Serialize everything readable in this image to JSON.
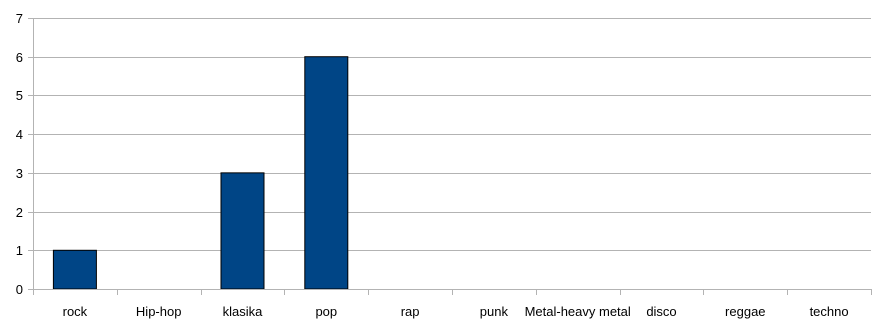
{
  "chart_data": {
    "type": "bar",
    "categories": [
      "rock",
      "Hip-hop",
      "klasika",
      "pop",
      "rap",
      "punk",
      "Metal-heavy metal",
      "disco",
      "reggae",
      "techno"
    ],
    "values": [
      1,
      0,
      3,
      6,
      0,
      0,
      0,
      0,
      0,
      0
    ],
    "ylim": [
      0,
      7
    ],
    "yticks": [
      0,
      1,
      2,
      3,
      4,
      5,
      6,
      7
    ],
    "grid": true,
    "legend": "none",
    "bar_color": "#004586"
  }
}
